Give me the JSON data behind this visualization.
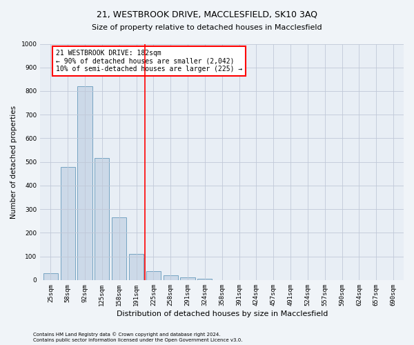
{
  "title1": "21, WESTBROOK DRIVE, MACCLESFIELD, SK10 3AQ",
  "title2": "Size of property relative to detached houses in Macclesfield",
  "xlabel": "Distribution of detached houses by size in Macclesfield",
  "ylabel": "Number of detached properties",
  "categories": [
    "25sqm",
    "58sqm",
    "92sqm",
    "125sqm",
    "158sqm",
    "191sqm",
    "225sqm",
    "258sqm",
    "291sqm",
    "324sqm",
    "358sqm",
    "391sqm",
    "424sqm",
    "457sqm",
    "491sqm",
    "524sqm",
    "557sqm",
    "590sqm",
    "624sqm",
    "657sqm",
    "690sqm"
  ],
  "values": [
    28,
    478,
    820,
    518,
    265,
    110,
    38,
    20,
    12,
    7,
    0,
    0,
    0,
    0,
    0,
    0,
    0,
    0,
    0,
    0,
    0
  ],
  "bar_color": "#ccd9e8",
  "bar_edge_color": "#6699bb",
  "annotation_text": "21 WESTBROOK DRIVE: 182sqm\n← 90% of detached houses are smaller (2,042)\n10% of semi-detached houses are larger (225) →",
  "red_line_x": 6.0,
  "ylim": [
    0,
    1000
  ],
  "yticks": [
    0,
    100,
    200,
    300,
    400,
    500,
    600,
    700,
    800,
    900,
    1000
  ],
  "footnote1": "Contains HM Land Registry data © Crown copyright and database right 2024.",
  "footnote2": "Contains public sector information licensed under the Open Government Licence v3.0.",
  "bg_color": "#f0f4f8",
  "plot_bg_color": "#e8eef5",
  "title1_fontsize": 9,
  "title2_fontsize": 8,
  "ylabel_fontsize": 7.5,
  "xlabel_fontsize": 8,
  "tick_fontsize": 6.5,
  "annot_fontsize": 7,
  "footnote_fontsize": 5
}
